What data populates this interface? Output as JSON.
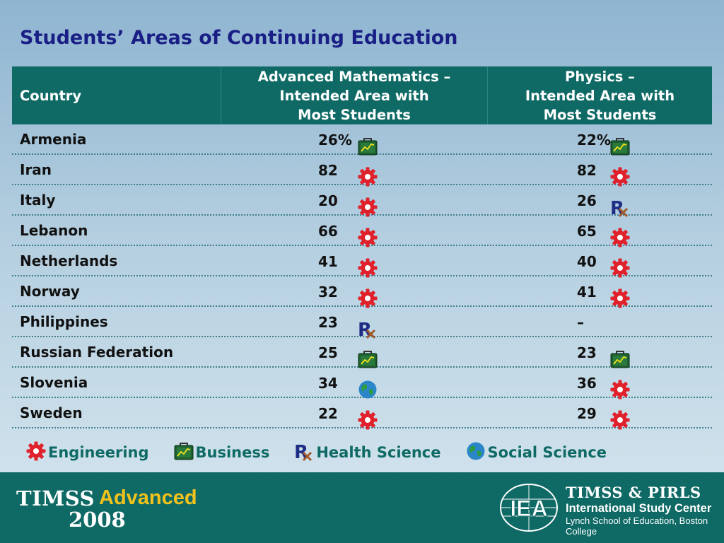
{
  "title": "Students’ Areas of Continuing Education",
  "headers": {
    "country": "Country",
    "math": "Advanced Mathematics –\nIntended Area with\nMost Students",
    "physics": "Physics –\nIntended Area with\nMost Students"
  },
  "rows": [
    {
      "country": "Armenia",
      "math_icon": "business-icon",
      "math": "26%",
      "physics_icon": "business-icon",
      "physics": "22%"
    },
    {
      "country": "Iran",
      "math_icon": "engineering-icon",
      "math": "82",
      "physics_icon": "engineering-icon",
      "physics": "82"
    },
    {
      "country": "Italy",
      "math_icon": "engineering-icon",
      "math": "20",
      "physics_icon": "health-science-icon",
      "physics": "26"
    },
    {
      "country": "Lebanon",
      "math_icon": "engineering-icon",
      "math": "66",
      "physics_icon": "engineering-icon",
      "physics": "65"
    },
    {
      "country": "Netherlands",
      "math_icon": "engineering-icon",
      "math": "41",
      "physics_icon": "engineering-icon",
      "physics": "40"
    },
    {
      "country": "Norway",
      "math_icon": "engineering-icon",
      "math": "32",
      "physics_icon": "engineering-icon",
      "physics": "41"
    },
    {
      "country": "Philippines",
      "math_icon": "health-science-icon",
      "math": "23",
      "physics_icon": "",
      "physics": "–"
    },
    {
      "country": "Russian Federation",
      "math_icon": "business-icon",
      "math": "25",
      "physics_icon": "business-icon",
      "physics": "23"
    },
    {
      "country": "Slovenia",
      "math_icon": "social-science-icon",
      "math": "34",
      "physics_icon": "engineering-icon",
      "physics": "36"
    },
    {
      "country": "Sweden",
      "math_icon": "engineering-icon",
      "math": "22",
      "physics_icon": "engineering-icon",
      "physics": "29"
    }
  ],
  "legend": [
    {
      "icon": "engineering-icon",
      "label": "Engineering"
    },
    {
      "icon": "business-icon",
      "label": "Business"
    },
    {
      "icon": "health-science-icon",
      "label": "Health Science"
    },
    {
      "icon": "social-science-icon",
      "label": "Social Science"
    }
  ],
  "footer": {
    "brand_timss": "TIMSS",
    "brand_advanced": "Advanced",
    "brand_year": "2008",
    "iea_logo_text": "IEA",
    "org_name": "TIMSS & PIRLS",
    "org_center": "International Study Center",
    "org_school": "Lynch School of Education, Boston College"
  },
  "colors": {
    "title": "#1a1f86",
    "header_bg": "#0f6a66",
    "legend_text": "#0f6a66",
    "engineering": "#e0202a",
    "business": "#1d5f2e",
    "health_science": "#1e2d86",
    "social_science": "#2a86c8",
    "brand_advanced": "#f2c21b"
  }
}
